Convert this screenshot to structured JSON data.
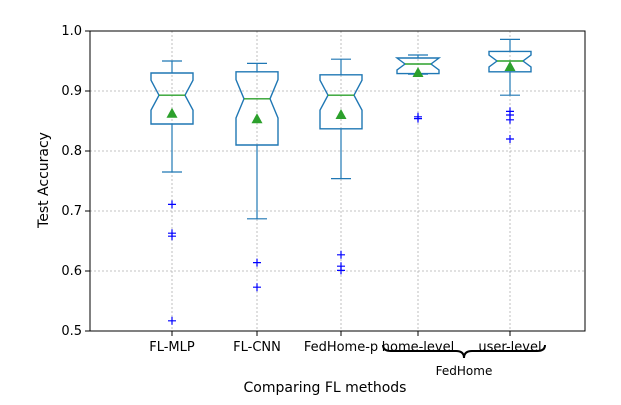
{
  "chart_data": {
    "type": "boxplot",
    "title": "",
    "xlabel": "Comparing FL methods",
    "ylabel": "Test Accuracy",
    "ylim": [
      0.5,
      1.0
    ],
    "yticks": [
      "0.5",
      "0.6",
      "0.7",
      "0.8",
      "0.9",
      "1.0"
    ],
    "grid": true,
    "notched": true,
    "group_label": "FedHome",
    "grouped_categories": [
      "home-level",
      "user-level"
    ],
    "categories": [
      "FL-MLP",
      "FL-CNN",
      "FedHome-p",
      "home-level",
      "user-level"
    ],
    "series": [
      {
        "category": "FL-MLP",
        "whisker_low": 0.765,
        "q1": 0.845,
        "median": 0.893,
        "q3": 0.93,
        "whisker_high": 0.95,
        "mean": 0.862,
        "notch_low": 0.868,
        "notch_high": 0.918,
        "outliers": [
          0.711,
          0.663,
          0.658,
          0.517
        ]
      },
      {
        "category": "FL-CNN",
        "whisker_low": 0.687,
        "q1": 0.81,
        "median": 0.887,
        "q3": 0.932,
        "whisker_high": 0.946,
        "mean": 0.853,
        "notch_low": 0.855,
        "notch_high": 0.919,
        "outliers": [
          0.614,
          0.573
        ]
      },
      {
        "category": "FedHome-p",
        "whisker_low": 0.754,
        "q1": 0.837,
        "median": 0.893,
        "q3": 0.927,
        "whisker_high": 0.953,
        "mean": 0.86,
        "notch_low": 0.868,
        "notch_high": 0.918,
        "outliers": [
          0.627,
          0.608,
          0.601
        ]
      },
      {
        "category": "home-level",
        "whisker_low": 0.928,
        "q1": 0.929,
        "median": 0.945,
        "q3": 0.955,
        "whisker_high": 0.96,
        "mean": 0.93,
        "notch_low": 0.935,
        "notch_high": 0.955,
        "outliers": [
          0.857,
          0.854
        ]
      },
      {
        "category": "user-level",
        "whisker_low": 0.893,
        "q1": 0.932,
        "median": 0.95,
        "q3": 0.966,
        "whisker_high": 0.986,
        "mean": 0.94,
        "notch_low": 0.94,
        "notch_high": 0.96,
        "outliers": [
          0.866,
          0.86,
          0.852,
          0.82
        ]
      }
    ],
    "colors": {
      "box": "#1f77b4",
      "median": "#2ca02c",
      "mean": "#2ca02c",
      "outlier": "#0000ff",
      "grid": "#b0b0b0",
      "axis": "#000000"
    }
  }
}
